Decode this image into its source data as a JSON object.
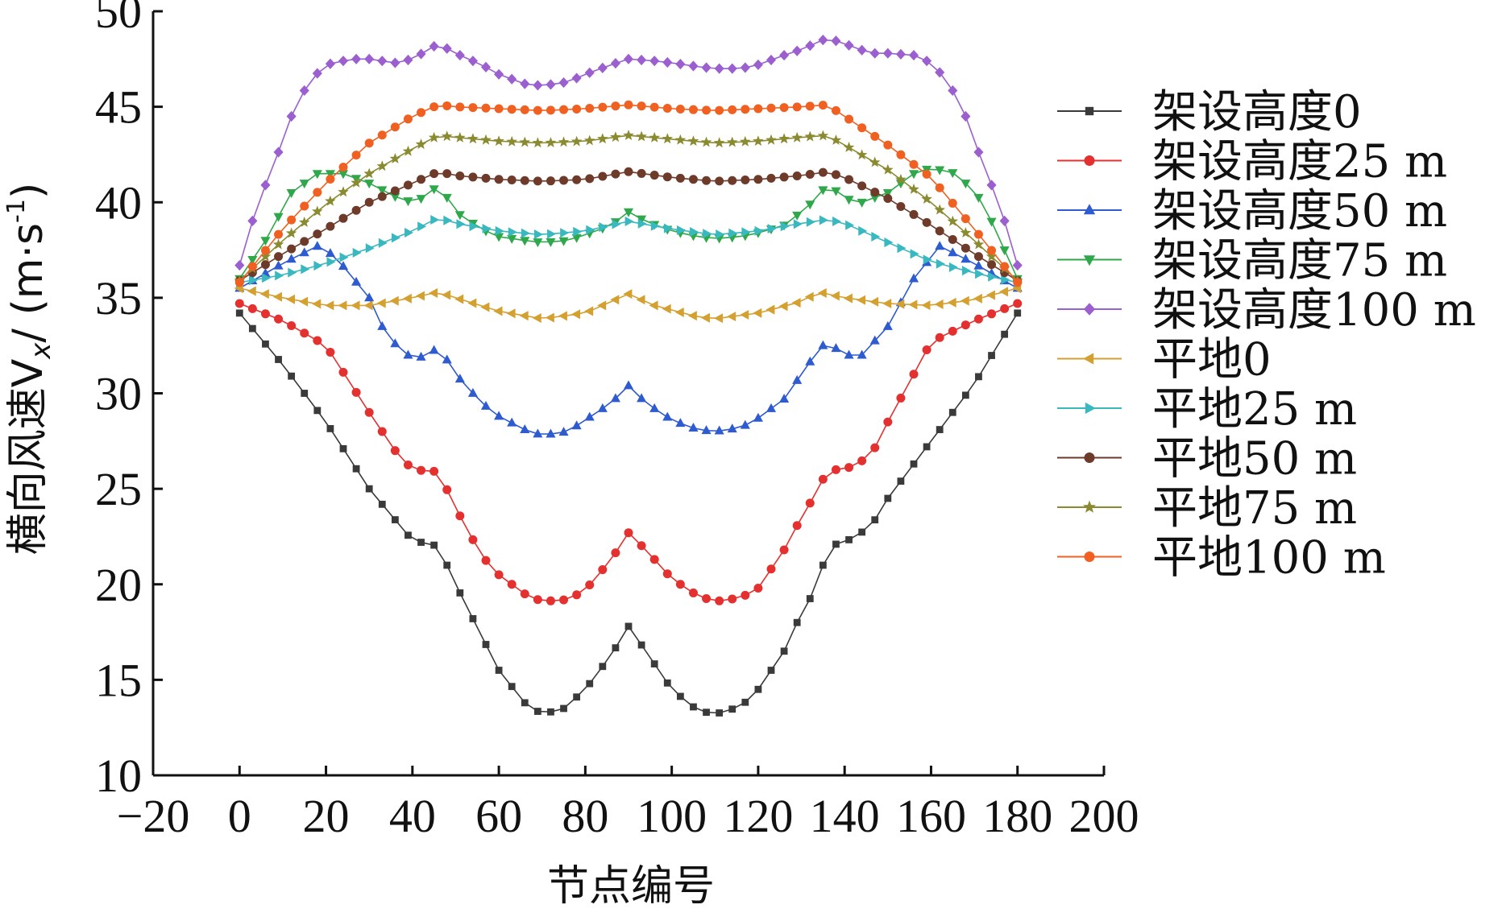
{
  "chart_data": {
    "type": "line",
    "xlabel": "节点编号",
    "ylabel": "横向风速V",
    "ylabel_sub": "x",
    "ylabel_unit": "/ (m·s",
    "ylabel_sup": "-1",
    "ylabel_close": ")",
    "xlim": [
      -20,
      200
    ],
    "ylim": [
      10,
      50
    ],
    "xticks": [
      "−20",
      "0",
      "20",
      "40",
      "60",
      "80",
      "100",
      "120",
      "140",
      "160",
      "180",
      "200"
    ],
    "xtick_values": [
      -20,
      0,
      20,
      40,
      60,
      80,
      100,
      120,
      140,
      160,
      180,
      200
    ],
    "yticks": [
      "10",
      "15",
      "20",
      "25",
      "30",
      "35",
      "40",
      "45",
      "50"
    ],
    "ytick_values": [
      10,
      15,
      20,
      25,
      30,
      35,
      40,
      45,
      50
    ],
    "grid": false,
    "legend_position": "right",
    "x_range": [
      0,
      180
    ],
    "x_step": 3,
    "series": [
      {
        "name": "架设高度0",
        "color": "#3a3a3a",
        "marker": "square",
        "keypoints": [
          [
            0,
            34.2
          ],
          [
            10,
            31.5
          ],
          [
            20,
            28.5
          ],
          [
            30,
            25
          ],
          [
            40,
            22.3
          ],
          [
            46,
            22
          ],
          [
            50,
            20
          ],
          [
            60,
            15.5
          ],
          [
            66,
            13.8
          ],
          [
            70,
            13.2
          ],
          [
            75,
            13.5
          ],
          [
            80,
            14.5
          ],
          [
            86,
            16.3
          ],
          [
            90,
            17.8
          ],
          [
            94,
            16.5
          ],
          [
            100,
            14.5
          ],
          [
            106,
            13.4
          ],
          [
            110,
            13.2
          ],
          [
            116,
            13.6
          ],
          [
            120,
            14.5
          ],
          [
            126,
            16.5
          ],
          [
            130,
            18.5
          ],
          [
            134,
            20
          ],
          [
            136,
            22
          ],
          [
            140,
            22.2
          ],
          [
            146,
            23
          ],
          [
            150,
            24.5
          ],
          [
            160,
            27.5
          ],
          [
            170,
            30.5
          ],
          [
            180,
            34.2
          ]
        ]
      },
      {
        "name": "架设高度25 m",
        "color": "#e53030",
        "marker": "circle",
        "keypoints": [
          [
            0,
            34.7
          ],
          [
            10,
            33.8
          ],
          [
            20,
            32.5
          ],
          [
            30,
            29
          ],
          [
            36,
            27
          ],
          [
            40,
            26
          ],
          [
            46,
            25.9
          ],
          [
            50,
            24
          ],
          [
            56,
            21.5
          ],
          [
            60,
            20.5
          ],
          [
            66,
            19.5
          ],
          [
            70,
            19.1
          ],
          [
            76,
            19.2
          ],
          [
            80,
            19.7
          ],
          [
            86,
            21.3
          ],
          [
            90,
            22.7
          ],
          [
            94,
            21.8
          ],
          [
            100,
            20.3
          ],
          [
            106,
            19.4
          ],
          [
            110,
            19.1
          ],
          [
            116,
            19.3
          ],
          [
            120,
            19.8
          ],
          [
            126,
            21.8
          ],
          [
            130,
            23.5
          ],
          [
            134,
            25
          ],
          [
            136,
            26
          ],
          [
            140,
            26
          ],
          [
            146,
            26.7
          ],
          [
            150,
            28.5
          ],
          [
            156,
            31
          ],
          [
            160,
            32.7
          ],
          [
            170,
            33.8
          ],
          [
            180,
            34.7
          ]
        ]
      },
      {
        "name": "架设高度50 m",
        "color": "#2f5bd0",
        "marker": "triangle-up",
        "keypoints": [
          [
            0,
            35.5
          ],
          [
            10,
            36.8
          ],
          [
            18,
            37.7
          ],
          [
            22,
            37.2
          ],
          [
            30,
            35
          ],
          [
            34,
            33
          ],
          [
            40,
            31.8
          ],
          [
            44,
            32
          ],
          [
            46,
            32.5
          ],
          [
            50,
            31
          ],
          [
            56,
            29.5
          ],
          [
            60,
            28.8
          ],
          [
            66,
            28.1
          ],
          [
            70,
            27.8
          ],
          [
            76,
            28
          ],
          [
            80,
            28.6
          ],
          [
            86,
            29.5
          ],
          [
            90,
            30.4
          ],
          [
            94,
            29.5
          ],
          [
            100,
            28.6
          ],
          [
            106,
            28.1
          ],
          [
            110,
            28
          ],
          [
            116,
            28.2
          ],
          [
            120,
            28.7
          ],
          [
            126,
            29.7
          ],
          [
            130,
            31
          ],
          [
            134,
            32.3
          ],
          [
            136,
            32.7
          ],
          [
            140,
            32
          ],
          [
            144,
            32
          ],
          [
            150,
            33.5
          ],
          [
            156,
            36
          ],
          [
            162,
            37.7
          ],
          [
            170,
            36.8
          ],
          [
            180,
            35.5
          ]
        ]
      },
      {
        "name": "架设高度75 m",
        "color": "#2ea84a",
        "marker": "triangle-down",
        "keypoints": [
          [
            0,
            36
          ],
          [
            6,
            38
          ],
          [
            12,
            40.5
          ],
          [
            18,
            41.5
          ],
          [
            24,
            41.5
          ],
          [
            30,
            41
          ],
          [
            36,
            40.3
          ],
          [
            40,
            40
          ],
          [
            44,
            40.4
          ],
          [
            46,
            41
          ],
          [
            50,
            39.5
          ],
          [
            56,
            38.6
          ],
          [
            60,
            38.2
          ],
          [
            66,
            38
          ],
          [
            70,
            37.9
          ],
          [
            76,
            38
          ],
          [
            80,
            38.3
          ],
          [
            86,
            38.8
          ],
          [
            90,
            39.5
          ],
          [
            94,
            39
          ],
          [
            100,
            38.5
          ],
          [
            106,
            38.2
          ],
          [
            110,
            38.1
          ],
          [
            116,
            38.2
          ],
          [
            120,
            38.4
          ],
          [
            126,
            38.8
          ],
          [
            130,
            39.5
          ],
          [
            134,
            40.3
          ],
          [
            136,
            41
          ],
          [
            140,
            40.2
          ],
          [
            144,
            40
          ],
          [
            150,
            40.5
          ],
          [
            156,
            41.5
          ],
          [
            160,
            41.8
          ],
          [
            166,
            41.5
          ],
          [
            172,
            40
          ],
          [
            176,
            38
          ],
          [
            180,
            36
          ]
        ]
      },
      {
        "name": "架设高度100 m",
        "color": "#9b5fcf",
        "marker": "diamond",
        "keypoints": [
          [
            0,
            36.7
          ],
          [
            4,
            39.8
          ],
          [
            8,
            42
          ],
          [
            12,
            44.5
          ],
          [
            16,
            46.3
          ],
          [
            20,
            47.2
          ],
          [
            26,
            47.5
          ],
          [
            30,
            47.5
          ],
          [
            36,
            47.3
          ],
          [
            40,
            47.5
          ],
          [
            46,
            48.3
          ],
          [
            50,
            47.8
          ],
          [
            56,
            47.2
          ],
          [
            60,
            46.7
          ],
          [
            66,
            46.2
          ],
          [
            70,
            46.1
          ],
          [
            76,
            46.3
          ],
          [
            80,
            46.7
          ],
          [
            86,
            47.2
          ],
          [
            90,
            47.5
          ],
          [
            96,
            47.4
          ],
          [
            100,
            47.3
          ],
          [
            106,
            47.1
          ],
          [
            110,
            47
          ],
          [
            116,
            47
          ],
          [
            120,
            47.2
          ],
          [
            126,
            47.7
          ],
          [
            130,
            48
          ],
          [
            136,
            48.6
          ],
          [
            140,
            48.3
          ],
          [
            146,
            47.8
          ],
          [
            150,
            47.8
          ],
          [
            156,
            47.7
          ],
          [
            160,
            47.3
          ],
          [
            164,
            46.3
          ],
          [
            168,
            44.5
          ],
          [
            172,
            42
          ],
          [
            176,
            39.8
          ],
          [
            180,
            36.7
          ]
        ]
      },
      {
        "name": "平地0",
        "color": "#d4a030",
        "marker": "triangle-left",
        "keypoints": [
          [
            0,
            35.5
          ],
          [
            10,
            35
          ],
          [
            20,
            34.6
          ],
          [
            30,
            34.6
          ],
          [
            40,
            35
          ],
          [
            46,
            35.3
          ],
          [
            50,
            35
          ],
          [
            60,
            34.3
          ],
          [
            70,
            33.9
          ],
          [
            80,
            34.2
          ],
          [
            86,
            34.8
          ],
          [
            90,
            35.2
          ],
          [
            96,
            34.6
          ],
          [
            106,
            34
          ],
          [
            110,
            33.9
          ],
          [
            120,
            34.2
          ],
          [
            130,
            34.8
          ],
          [
            134,
            35.3
          ],
          [
            140,
            35
          ],
          [
            150,
            34.7
          ],
          [
            160,
            34.6
          ],
          [
            170,
            34.9
          ],
          [
            180,
            35.5
          ]
        ]
      },
      {
        "name": "平地25 m",
        "color": "#3ab8c0",
        "marker": "triangle-right",
        "keypoints": [
          [
            0,
            35.8
          ],
          [
            10,
            36.2
          ],
          [
            20,
            36.8
          ],
          [
            30,
            37.6
          ],
          [
            40,
            38.5
          ],
          [
            46,
            39.2
          ],
          [
            50,
            38.9
          ],
          [
            60,
            38.5
          ],
          [
            70,
            38.3
          ],
          [
            80,
            38.5
          ],
          [
            90,
            39
          ],
          [
            100,
            38.6
          ],
          [
            110,
            38.3
          ],
          [
            120,
            38.5
          ],
          [
            130,
            38.9
          ],
          [
            136,
            39.1
          ],
          [
            140,
            38.9
          ],
          [
            150,
            37.9
          ],
          [
            160,
            36.9
          ],
          [
            170,
            36.3
          ],
          [
            180,
            35.8
          ]
        ]
      },
      {
        "name": "平地50 m",
        "color": "#6e3a2a",
        "marker": "circle",
        "keypoints": [
          [
            0,
            35.9
          ],
          [
            10,
            37.3
          ],
          [
            20,
            38.6
          ],
          [
            30,
            40
          ],
          [
            40,
            41
          ],
          [
            46,
            41.6
          ],
          [
            50,
            41.4
          ],
          [
            60,
            41.2
          ],
          [
            70,
            41.1
          ],
          [
            80,
            41.2
          ],
          [
            90,
            41.6
          ],
          [
            100,
            41.3
          ],
          [
            110,
            41.1
          ],
          [
            120,
            41.2
          ],
          [
            130,
            41.4
          ],
          [
            136,
            41.6
          ],
          [
            140,
            41.3
          ],
          [
            150,
            40.2
          ],
          [
            160,
            38.8
          ],
          [
            170,
            37.3
          ],
          [
            180,
            35.9
          ]
        ]
      },
      {
        "name": "平地75 m",
        "color": "#8a8a30",
        "marker": "star",
        "keypoints": [
          [
            0,
            35.9
          ],
          [
            10,
            38
          ],
          [
            20,
            39.9
          ],
          [
            30,
            41.5
          ],
          [
            40,
            42.8
          ],
          [
            46,
            43.5
          ],
          [
            50,
            43.4
          ],
          [
            60,
            43.2
          ],
          [
            70,
            43.1
          ],
          [
            80,
            43.2
          ],
          [
            90,
            43.5
          ],
          [
            100,
            43.3
          ],
          [
            110,
            43.1
          ],
          [
            120,
            43.2
          ],
          [
            130,
            43.4
          ],
          [
            136,
            43.5
          ],
          [
            140,
            43
          ],
          [
            150,
            41.7
          ],
          [
            160,
            40
          ],
          [
            170,
            38
          ],
          [
            180,
            35.9
          ]
        ]
      },
      {
        "name": "平地100 m",
        "color": "#f06020",
        "marker": "circle",
        "keypoints": [
          [
            0,
            35.8
          ],
          [
            10,
            38.6
          ],
          [
            20,
            41
          ],
          [
            30,
            43.1
          ],
          [
            40,
            44.5
          ],
          [
            46,
            45.1
          ],
          [
            50,
            45
          ],
          [
            60,
            44.9
          ],
          [
            70,
            44.8
          ],
          [
            80,
            44.9
          ],
          [
            90,
            45.1
          ],
          [
            100,
            44.9
          ],
          [
            110,
            44.8
          ],
          [
            120,
            44.9
          ],
          [
            130,
            45
          ],
          [
            136,
            45.1
          ],
          [
            140,
            44.5
          ],
          [
            150,
            43
          ],
          [
            160,
            41.3
          ],
          [
            170,
            38.6
          ],
          [
            180,
            35.8
          ]
        ]
      }
    ]
  }
}
